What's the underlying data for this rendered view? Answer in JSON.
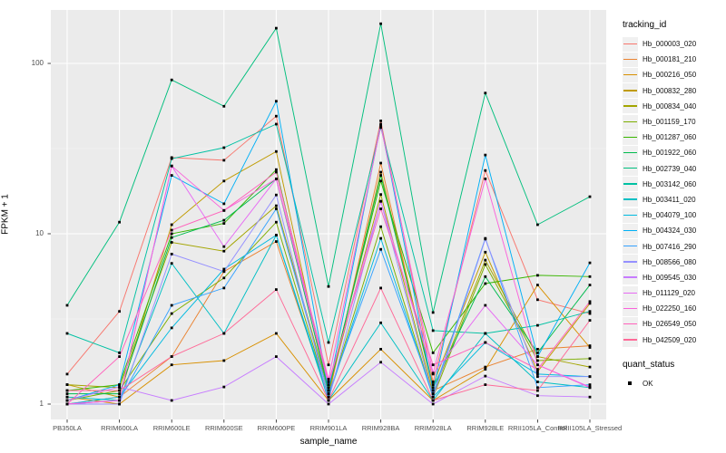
{
  "chart_data": {
    "type": "line",
    "title": "",
    "xlabel": "sample_name",
    "ylabel": "FPKM + 1",
    "y_scale": "log10",
    "y_ticks": [
      1,
      10,
      100
    ],
    "y_minor_ticks": [
      3.1623,
      31.623
    ],
    "ylim": [
      0.81,
      206
    ],
    "grid": "on",
    "panel_bg": "#EBEBEB",
    "grid_major_color": "#FFFFFF",
    "grid_minor_color": "#FFFFFF",
    "point_color": "#000000",
    "categories": [
      "PB350LA",
      "RRIM600LA",
      "RRIM600LE",
      "RRIM600SE",
      "RRIM600PE",
      "RRIM901LA",
      "RRIM928BA",
      "RRIM928LA",
      "RRIM928LE",
      "RRII105LA_Control",
      "RRII105LA_Stressed"
    ],
    "legend": {
      "title": "tracking_id",
      "position": "right"
    },
    "quant_legend": {
      "title": "quant_status",
      "items": [
        {
          "label": "OK",
          "symbol": "black-square"
        }
      ]
    },
    "series": [
      {
        "name": "Hb_000003_020",
        "color": "#F8766D",
        "values": [
          1.5,
          3.5,
          28,
          27,
          49,
          1.7,
          46,
          1.35,
          23.5,
          4.1,
          3.4
        ]
      },
      {
        "name": "Hb_000181_210",
        "color": "#EA8331",
        "values": [
          1.0,
          1.1,
          1.9,
          6.0,
          9.0,
          1.1,
          26,
          1.2,
          1.65,
          2.1,
          2.2
        ]
      },
      {
        "name": "Hb_000216_050",
        "color": "#D89000",
        "values": [
          1.1,
          1.0,
          1.7,
          1.8,
          2.6,
          1.05,
          2.1,
          1.05,
          1.6,
          5.0,
          2.15
        ]
      },
      {
        "name": "Hb_000832_280",
        "color": "#C09B00",
        "values": [
          1.3,
          1.1,
          11.3,
          20.4,
          30.4,
          1.15,
          23,
          1.3,
          7.8,
          1.55,
          3.9
        ]
      },
      {
        "name": "Hb_000834_040",
        "color": "#A3A500",
        "values": [
          1.3,
          1.25,
          8.9,
          7.9,
          14.6,
          1.2,
          17,
          1.15,
          7.0,
          1.9,
          1.65
        ]
      },
      {
        "name": "Hb_001159_170",
        "color": "#7CAE00",
        "values": [
          1.05,
          1.2,
          3.4,
          5.5,
          11.7,
          1.1,
          11,
          1.1,
          6.6,
          1.8,
          1.85
        ]
      },
      {
        "name": "Hb_001287_060",
        "color": "#39B600",
        "values": [
          1.2,
          1.3,
          10.0,
          11.5,
          23.8,
          1.25,
          20.4,
          2.0,
          5.1,
          5.7,
          5.6
        ]
      },
      {
        "name": "Hb_001922_060",
        "color": "#00BB4E",
        "values": [
          1.15,
          1.15,
          9.5,
          12,
          21,
          1.2,
          22,
          1.25,
          5.6,
          2.0,
          5.0
        ]
      },
      {
        "name": "Hb_002739_040",
        "color": "#00BF7D",
        "values": [
          3.8,
          11.7,
          80,
          56,
          161,
          4.9,
          171,
          3.45,
          67,
          11.3,
          16.5
        ]
      },
      {
        "name": "Hb_003142_060",
        "color": "#00C1A3",
        "values": [
          2.6,
          2.0,
          27.6,
          32,
          44,
          2.3,
          42,
          2.7,
          2.6,
          2.9,
          3.5
        ]
      },
      {
        "name": "Hb_003411_020",
        "color": "#00BFC4",
        "values": [
          1.1,
          1.05,
          6.7,
          2.6,
          9.8,
          1.05,
          3.0,
          1.05,
          2.6,
          1.35,
          1.25
        ]
      },
      {
        "name": "Hb_004079_100",
        "color": "#00BAE0",
        "values": [
          1.0,
          1.1,
          2.8,
          6.2,
          9.8,
          1.1,
          9.4,
          1.1,
          2.3,
          1.5,
          1.45
        ]
      },
      {
        "name": "Hb_004324_030",
        "color": "#00B0F6",
        "values": [
          1.05,
          1.3,
          22,
          15,
          60,
          1.2,
          44,
          1.2,
          29,
          1.9,
          6.75
        ]
      },
      {
        "name": "Hb_007416_290",
        "color": "#35A2FF",
        "values": [
          1.0,
          1.05,
          3.8,
          4.8,
          14,
          1.15,
          8.1,
          1.15,
          9.4,
          1.25,
          1.3
        ]
      },
      {
        "name": "Hb_008566_080",
        "color": "#9590FF",
        "values": [
          1.0,
          1.0,
          7.6,
          6.0,
          16.9,
          1.05,
          15.5,
          1.1,
          9.3,
          1.45,
          1.45
        ]
      },
      {
        "name": "Hb_009545_030",
        "color": "#C77CFF",
        "values": [
          1.05,
          1.26,
          1.05,
          1.26,
          1.9,
          1.0,
          1.76,
          1.0,
          1.46,
          1.12,
          1.1
        ]
      },
      {
        "name": "Hb_011129_020",
        "color": "#E76BF3",
        "values": [
          1.0,
          1.05,
          25,
          8.4,
          21,
          1.3,
          15.5,
          1.5,
          3.8,
          1.7,
          1.26
        ]
      },
      {
        "name": "Hb_022250_160",
        "color": "#FA62DB",
        "values": [
          1.0,
          1.05,
          25,
          13.7,
          21,
          1.4,
          43,
          1.52,
          21,
          1.7,
          1.25
        ]
      },
      {
        "name": "Hb_026549_050",
        "color": "#FF62BC",
        "values": [
          1.0,
          1.9,
          10.5,
          13.7,
          23,
          1.35,
          14,
          1.7,
          2.3,
          1.6,
          4.0
        ]
      },
      {
        "name": "Hb_042509_020",
        "color": "#FF6A98",
        "values": [
          1.2,
          1.2,
          1.9,
          2.6,
          4.7,
          1.05,
          4.8,
          1.05,
          1.3,
          1.2,
          3.1
        ]
      }
    ]
  }
}
